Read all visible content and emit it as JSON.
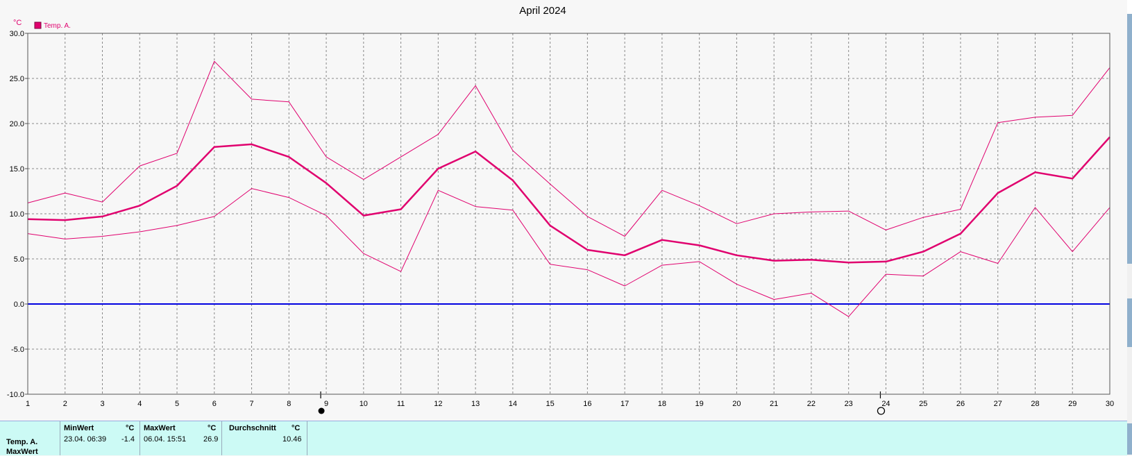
{
  "chart_data": {
    "type": "line",
    "title": "April 2024",
    "y_unit": "°C",
    "legend": [
      {
        "label": "Temp. A.",
        "color": "#e0006e"
      }
    ],
    "ylim": [
      -10,
      30
    ],
    "y_ticks": [
      "30.0",
      "25.0",
      "20.0",
      "15.0",
      "10.0",
      "5.0",
      "0.0",
      "-5.0",
      "-10.0"
    ],
    "x": [
      1,
      2,
      3,
      4,
      5,
      6,
      7,
      8,
      9,
      10,
      11,
      12,
      13,
      14,
      15,
      16,
      17,
      18,
      19,
      20,
      21,
      22,
      23,
      24,
      25,
      26,
      27,
      28,
      29,
      30
    ],
    "series": [
      {
        "name": "Temp. A.",
        "role": "max",
        "color": "#e0006e",
        "values": [
          11.2,
          12.3,
          11.3,
          15.3,
          16.7,
          26.9,
          22.7,
          22.4,
          16.3,
          13.8,
          16.3,
          18.8,
          24.2,
          17.0,
          13.3,
          9.7,
          7.5,
          12.6,
          10.9,
          8.9,
          10.0,
          10.2,
          10.3,
          8.2,
          9.6,
          10.5,
          20.1,
          20.7,
          20.9,
          26.2
        ]
      },
      {
        "name": "Temp. A.",
        "role": "mean",
        "color": "#e0006e",
        "values": [
          9.4,
          9.3,
          9.7,
          10.9,
          13.1,
          17.4,
          17.7,
          16.3,
          13.4,
          9.8,
          10.5,
          15.0,
          16.9,
          13.7,
          8.7,
          6.0,
          5.4,
          7.1,
          6.5,
          5.4,
          4.8,
          4.9,
          4.6,
          4.7,
          5.8,
          7.8,
          12.3,
          14.6,
          13.9,
          18.5
        ]
      },
      {
        "name": "Temp. A.",
        "role": "min",
        "color": "#e0006e",
        "values": [
          7.8,
          7.2,
          7.5,
          8.0,
          8.7,
          9.7,
          12.8,
          11.8,
          9.8,
          5.6,
          3.6,
          12.6,
          10.8,
          10.4,
          4.4,
          3.8,
          2.0,
          4.3,
          4.7,
          2.2,
          0.5,
          1.2,
          -1.4,
          3.3,
          3.1,
          5.8,
          4.5,
          10.7,
          5.8,
          10.7
        ]
      }
    ],
    "reference_line": {
      "value": 0,
      "color": "#0000e0"
    },
    "moon_phases": [
      {
        "day": 9,
        "symbol": "new moon",
        "glyph": "●"
      },
      {
        "day": 24,
        "symbol": "full moon",
        "glyph": "○"
      }
    ],
    "grid": true
  },
  "stats": {
    "row_label": "Temp. A.",
    "row_label2": "MaxWert",
    "min_header": "MinWert",
    "min_unit": "°C",
    "min_when": "23.04.  06:39",
    "min_value": "-1.4",
    "max_header": "MaxWert",
    "max_unit": "°C",
    "max_when": "06.04.  15:51",
    "max_value": "26.9",
    "avg_header": "Durchschnitt",
    "avg_unit": "°C",
    "avg_value": "10.46"
  }
}
